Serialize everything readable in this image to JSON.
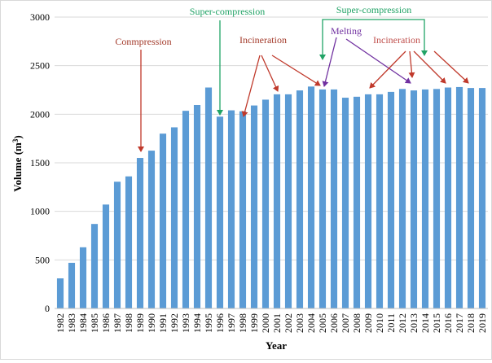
{
  "chart_data": {
    "type": "bar",
    "xlabel": "Year",
    "ylabel_main": "Volume (m",
    "ylabel_sup": "3",
    "ylabel_end": ")",
    "ylim": [
      0,
      3000
    ],
    "yticks": [
      0,
      500,
      1000,
      1500,
      2000,
      2500,
      3000
    ],
    "grid": "horizontal",
    "bar_color": "#5b9bd5",
    "categories": [
      "1982",
      "1983",
      "1984",
      "1985",
      "1986",
      "1987",
      "1988",
      "1989",
      "1990",
      "1991",
      "1992",
      "1993",
      "1994",
      "1995",
      "1996",
      "1997",
      "1998",
      "1999",
      "2000",
      "2001",
      "2002",
      "2003",
      "2004",
      "2005",
      "2006",
      "2007",
      "2008",
      "2009",
      "2010",
      "2011",
      "2012",
      "2013",
      "2014",
      "2015",
      "2016",
      "2017",
      "2018",
      "2019"
    ],
    "values": [
      310,
      470,
      630,
      870,
      1070,
      1305,
      1360,
      1550,
      1625,
      1800,
      1865,
      2035,
      2095,
      2275,
      1975,
      2040,
      2030,
      2090,
      2150,
      2205,
      2205,
      2245,
      2285,
      2255,
      2255,
      2170,
      2180,
      2205,
      2205,
      2230,
      2260,
      2245,
      2255,
      2260,
      2275,
      2280,
      2270,
      2270
    ],
    "annotations": [
      {
        "text": "Conmpression",
        "color": "#a33a2a",
        "targets": [
          "1989"
        ]
      },
      {
        "text": "Super-compression",
        "color": "#21a366",
        "targets": [
          "1996"
        ]
      },
      {
        "text": "Incineration",
        "color": "#a33a2a",
        "targets": [
          "1998",
          "2001",
          "2005"
        ]
      },
      {
        "text": "Super-compression",
        "color": "#21a366",
        "targets": [
          "2005",
          "2014"
        ]
      },
      {
        "text": "Melting",
        "color": "#7030a0",
        "targets": [
          "2005",
          "2013"
        ]
      },
      {
        "text": "Incineration",
        "color": "#c0504d",
        "targets": [
          "2009",
          "2013",
          "2016",
          "2018"
        ]
      }
    ],
    "arrow_color_incineration": "#c0392b"
  }
}
